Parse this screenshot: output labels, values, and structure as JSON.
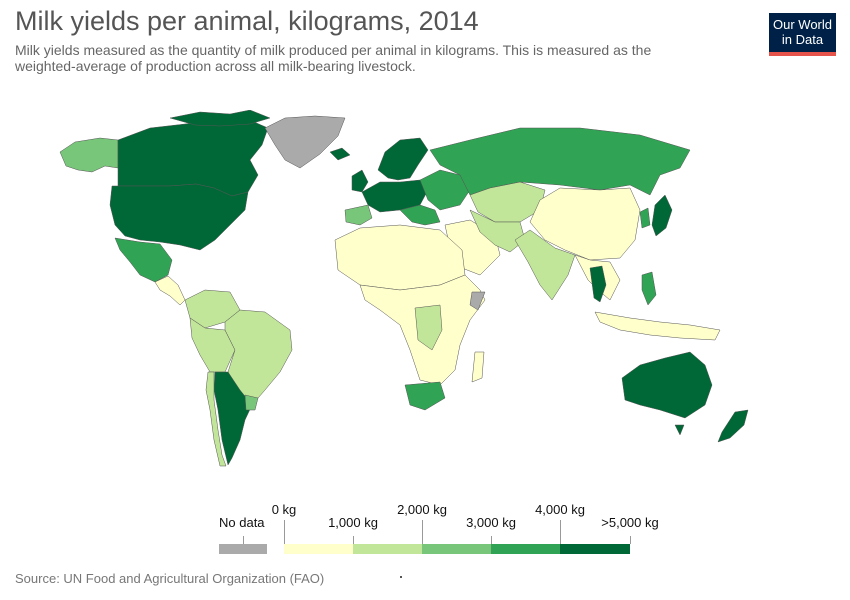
{
  "header": {
    "title": "Milk yields per animal, kilograms, 2014",
    "subtitle": "Milk yields measured as the quantity of milk produced per animal in kilograms. This is measured as the weighted-average of production across all milk-bearing livestock."
  },
  "logo": {
    "line1": "Our World",
    "line2": "in Data",
    "bg": "#002147",
    "accent": "#e5534b"
  },
  "legend": {
    "no_data_label": "No data",
    "no_data_color": "#aaaaaa",
    "bins": [
      {
        "color": "#ffffcc"
      },
      {
        "color": "#c2e699"
      },
      {
        "color": "#78c679"
      },
      {
        "color": "#31a354"
      },
      {
        "color": "#006837"
      }
    ],
    "tick_labels": [
      "0 kg",
      "1,000 kg",
      "2,000 kg",
      "3,000 kg",
      "4,000 kg",
      ">5,000 kg"
    ]
  },
  "footer": {
    "source": "Source: UN Food and Agricultural Organization (FAO)"
  },
  "map_data": {
    "type": "choropleth",
    "regions": [
      {
        "name": "Canada",
        "color": "#006837"
      },
      {
        "name": "United States",
        "color": "#006837"
      },
      {
        "name": "Alaska",
        "color": "#78c679"
      },
      {
        "name": "Greenland",
        "color": "#aaaaaa"
      },
      {
        "name": "Mexico",
        "color": "#31a354"
      },
      {
        "name": "Central America",
        "color": "#ffffcc"
      },
      {
        "name": "Colombia / Venezuela",
        "color": "#c2e699"
      },
      {
        "name": "Brazil",
        "color": "#c2e699"
      },
      {
        "name": "Peru / Bolivia",
        "color": "#c2e699"
      },
      {
        "name": "Chile",
        "color": "#c2e699"
      },
      {
        "name": "Argentina",
        "color": "#006837"
      },
      {
        "name": "Uruguay",
        "color": "#78c679"
      },
      {
        "name": "Western Europe",
        "color": "#006837"
      },
      {
        "name": "Scandinavia",
        "color": "#006837"
      },
      {
        "name": "Iberia",
        "color": "#78c679"
      },
      {
        "name": "Eastern Europe",
        "color": "#31a354"
      },
      {
        "name": "Russia",
        "color": "#31a354"
      },
      {
        "name": "Kazakhstan / Central Asia",
        "color": "#c2e699"
      },
      {
        "name": "Mongolia / China",
        "color": "#ffffcc"
      },
      {
        "name": "Japan",
        "color": "#006837"
      },
      {
        "name": "Korea",
        "color": "#31a354"
      },
      {
        "name": "North Africa",
        "color": "#ffffcc"
      },
      {
        "name": "Sub-Saharan Africa",
        "color": "#ffffcc"
      },
      {
        "name": "DR Congo region",
        "color": "#c2e699"
      },
      {
        "name": "Somalia",
        "color": "#aaaaaa"
      },
      {
        "name": "South Africa",
        "color": "#31a354"
      },
      {
        "name": "Middle East",
        "color": "#ffffcc"
      },
      {
        "name": "Iran / Turkey region",
        "color": "#c2e699"
      },
      {
        "name": "India / Pakistan",
        "color": "#c2e699"
      },
      {
        "name": "Thailand",
        "color": "#006837"
      },
      {
        "name": "Southeast Asia",
        "color": "#ffffcc"
      },
      {
        "name": "Philippines",
        "color": "#31a354"
      },
      {
        "name": "Indonesia",
        "color": "#ffffcc"
      },
      {
        "name": "Australia",
        "color": "#006837"
      },
      {
        "name": "New Zealand",
        "color": "#006837"
      }
    ]
  }
}
